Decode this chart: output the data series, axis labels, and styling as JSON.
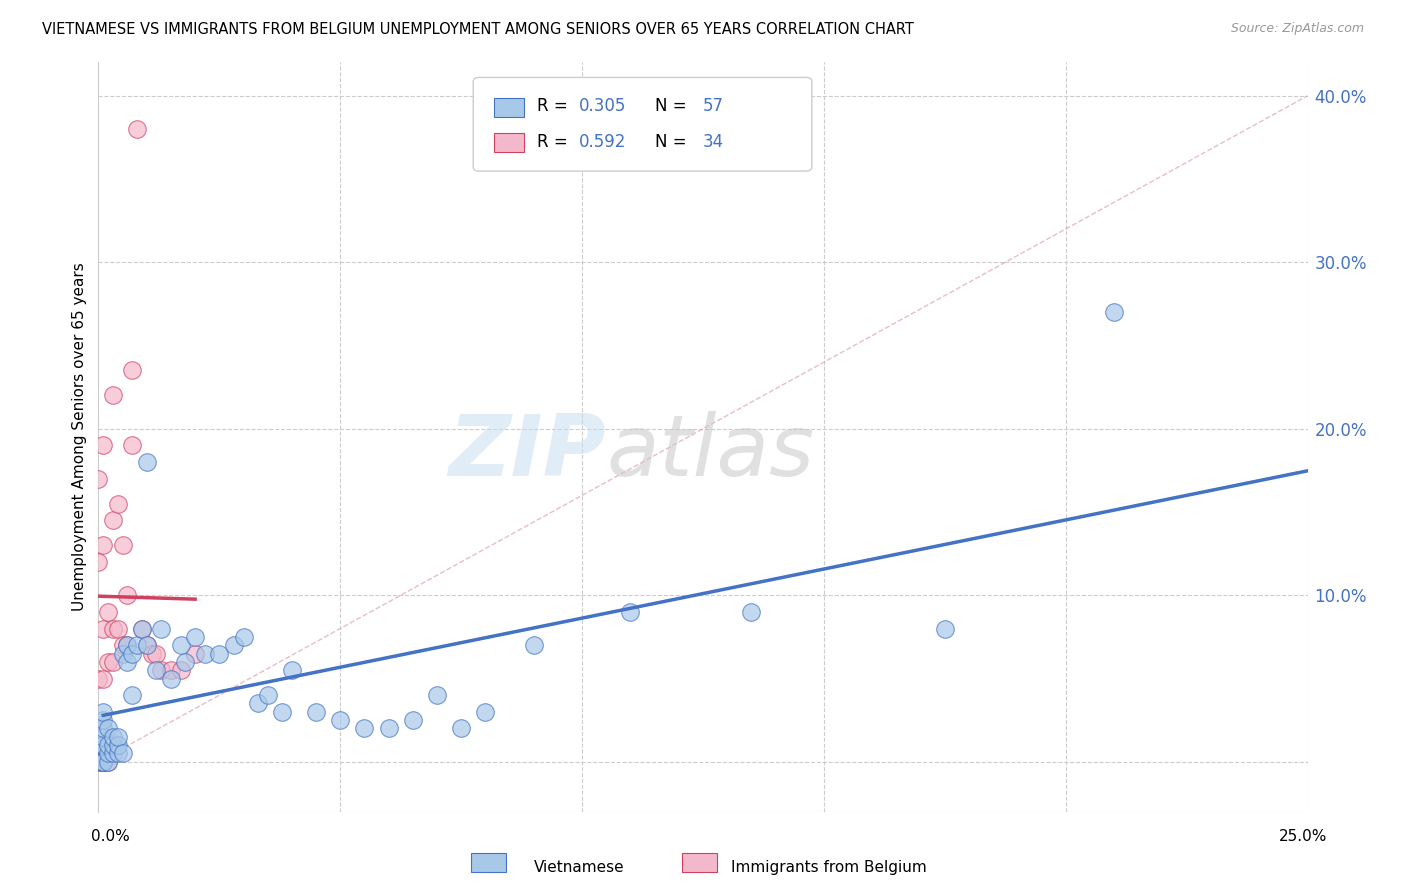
{
  "title": "VIETNAMESE VS IMMIGRANTS FROM BELGIUM UNEMPLOYMENT AMONG SENIORS OVER 65 YEARS CORRELATION CHART",
  "source": "Source: ZipAtlas.com",
  "ylabel": "Unemployment Among Seniors over 65 years",
  "yticks": [
    0.0,
    0.1,
    0.2,
    0.3,
    0.4
  ],
  "ytick_labels": [
    "",
    "10.0%",
    "20.0%",
    "30.0%",
    "40.0%"
  ],
  "xlim": [
    0.0,
    0.25
  ],
  "ylim": [
    -0.03,
    0.42
  ],
  "r_vietnamese": 0.305,
  "n_vietnamese": 57,
  "r_belgium": 0.592,
  "n_belgium": 34,
  "viet_color": "#a8c8e8",
  "belg_color": "#f4b8cc",
  "viet_line_color": "#4472c4",
  "belg_line_color": "#d04060",
  "watermark_zip": "ZIP",
  "watermark_atlas": "atlas",
  "background_color": "#ffffff",
  "viet_x": [
    0.001,
    0.001,
    0.001,
    0.001,
    0.001,
    0.001,
    0.001,
    0.001,
    0.001,
    0.001,
    0.002,
    0.002,
    0.002,
    0.002,
    0.003,
    0.003,
    0.003,
    0.004,
    0.004,
    0.004,
    0.005,
    0.005,
    0.006,
    0.006,
    0.007,
    0.007,
    0.008,
    0.009,
    0.01,
    0.01,
    0.012,
    0.013,
    0.015,
    0.017,
    0.018,
    0.02,
    0.022,
    0.025,
    0.028,
    0.03,
    0.033,
    0.035,
    0.038,
    0.04,
    0.045,
    0.05,
    0.055,
    0.06,
    0.065,
    0.07,
    0.075,
    0.08,
    0.09,
    0.11,
    0.135,
    0.175,
    0.21
  ],
  "viet_y": [
    0.0,
    0.0,
    0.0,
    0.0,
    0.01,
    0.01,
    0.015,
    0.02,
    0.025,
    0.03,
    0.0,
    0.005,
    0.01,
    0.02,
    0.005,
    0.01,
    0.015,
    0.005,
    0.01,
    0.015,
    0.005,
    0.065,
    0.06,
    0.07,
    0.04,
    0.065,
    0.07,
    0.08,
    0.07,
    0.18,
    0.055,
    0.08,
    0.05,
    0.07,
    0.06,
    0.075,
    0.065,
    0.065,
    0.07,
    0.075,
    0.035,
    0.04,
    0.03,
    0.055,
    0.03,
    0.025,
    0.02,
    0.02,
    0.025,
    0.04,
    0.02,
    0.03,
    0.07,
    0.09,
    0.09,
    0.08,
    0.27
  ],
  "belg_x": [
    0.0,
    0.0,
    0.0,
    0.0,
    0.0,
    0.001,
    0.001,
    0.001,
    0.001,
    0.001,
    0.002,
    0.002,
    0.002,
    0.003,
    0.003,
    0.003,
    0.003,
    0.004,
    0.004,
    0.005,
    0.005,
    0.006,
    0.006,
    0.007,
    0.007,
    0.008,
    0.009,
    0.01,
    0.011,
    0.012,
    0.013,
    0.015,
    0.017,
    0.02
  ],
  "belg_y": [
    0.0,
    0.0,
    0.05,
    0.12,
    0.17,
    0.0,
    0.05,
    0.08,
    0.13,
    0.19,
    0.0,
    0.06,
    0.09,
    0.06,
    0.08,
    0.145,
    0.22,
    0.08,
    0.155,
    0.07,
    0.13,
    0.07,
    0.1,
    0.19,
    0.235,
    0.38,
    0.08,
    0.07,
    0.065,
    0.065,
    0.055,
    0.055,
    0.055,
    0.065
  ]
}
